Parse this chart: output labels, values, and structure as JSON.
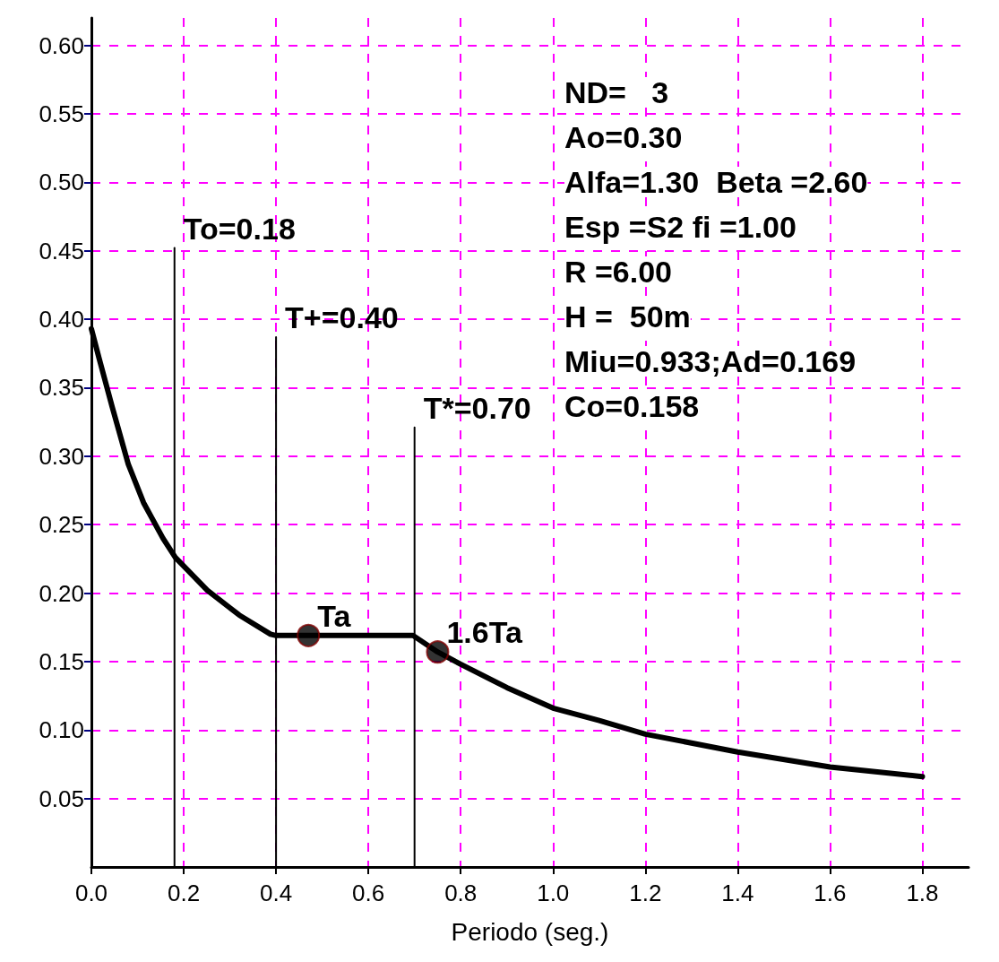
{
  "chart_data": {
    "type": "line",
    "xlabel": "Periodo (seg.)",
    "xlim": [
      0,
      1.9
    ],
    "xticks": [
      {
        "value": 0,
        "label": "0.0"
      },
      0.2,
      0.4,
      0.6,
      0.8,
      {
        "value": 1,
        "label": "1.0"
      },
      1.2,
      1.4,
      1.6,
      1.8
    ],
    "ylim": [
      0,
      0.62
    ],
    "yticks": [
      {
        "value": 0.05,
        "label": "0.05"
      },
      {
        "value": 0.1,
        "label": "0.10"
      },
      0.15,
      {
        "value": 0.2,
        "label": "0.20"
      },
      0.25,
      {
        "value": 0.3,
        "label": "0.30"
      },
      0.35,
      {
        "value": 0.4,
        "label": "0.40"
      },
      0.45,
      {
        "value": 0.5,
        "label": "0.50"
      },
      0.55,
      {
        "value": 0.6,
        "label": "0.60"
      }
    ],
    "grid": true,
    "series": [
      {
        "color": "#000000",
        "marker": "none",
        "x": [
          0,
          0.017,
          0.045,
          0.08,
          0.113,
          0.155,
          0.182,
          0.251,
          0.32,
          0.388,
          0.4,
          0.47,
          0.697,
          0.75,
          0.8,
          0.9,
          1.0,
          1.1,
          1.2,
          1.4,
          1.6,
          1.8
        ],
        "values": [
          0.393,
          0.371,
          0.336,
          0.294,
          0.266,
          0.24,
          0.226,
          0.202,
          0.184,
          0.17,
          0.169,
          0.169,
          0.169,
          0.157,
          0.148,
          0.131,
          0.116,
          0.107,
          0.097,
          0.084,
          0.073,
          0.066
        ]
      },
      {
        "color": "#000000",
        "marker": "none",
        "x": [
          0.18,
          0.18
        ],
        "values": [
          0,
          0.452
        ]
      },
      {
        "color": "#000000",
        "marker": "none",
        "x": [
          0.4,
          0.4
        ],
        "values": [
          0,
          0.387
        ]
      },
      {
        "color": "#000000",
        "marker": "none",
        "x": [
          0.7,
          0.7
        ],
        "values": [
          0,
          0.321
        ]
      },
      {
        "type": "scatter",
        "color": "#000000",
        "marker": "circle",
        "x": [
          0.47,
          0.75
        ],
        "values": [
          0.169,
          0.157
        ]
      }
    ],
    "annotations": [
      {
        "text": "To=0.18",
        "x": 0.18,
        "y": 0.452
      },
      {
        "text": "T+=0.40",
        "x": 0.4,
        "y": 0.387
      },
      {
        "text": "T*=0.70",
        "x": 0.7,
        "y": 0.321
      },
      {
        "text": "Ta",
        "x": 0.47,
        "y": 0.169
      },
      {
        "text": "1.6Ta",
        "x": 0.75,
        "y": 0.157
      },
      "ND=   3",
      "Ao=0.30",
      "Alfa=1.30  Beta =2.60",
      "Esp =S2 fi =1.00",
      "R =6.00",
      "H =  50m",
      "Miu=0.933;Ad=0.169",
      "Co=0.158"
    ]
  }
}
